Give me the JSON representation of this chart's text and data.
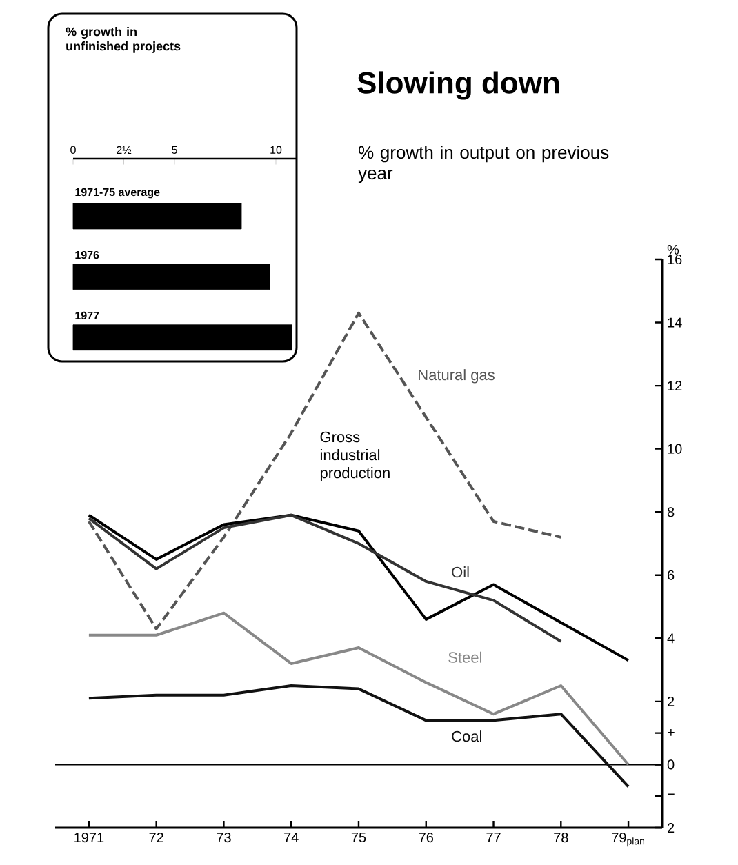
{
  "chart_data": [
    {
      "type": "line",
      "title": "Slowing down",
      "subtitle": "% growth in output on previous year",
      "ylabel": "%",
      "categories": [
        "1971",
        "72",
        "73",
        "74",
        "75",
        "76",
        "77",
        "78",
        "79$_{plan}$"
      ],
      "series": [
        {
          "name": "Natural gas",
          "color": "#555555",
          "line_style": "dashed",
          "values": [
            7.7,
            4.3,
            7.2,
            10.5,
            14.3,
            11,
            7.7,
            7.2,
            null
          ]
        },
        {
          "name": "Gross industrial production",
          "color": "#000000",
          "values": [
            7.9,
            6.5,
            7.6,
            7.9,
            7.4,
            4.6,
            5.7,
            4.5,
            3.3
          ]
        },
        {
          "name": "Oil",
          "color": "#333333",
          "values": [
            7.8,
            6.2,
            7.5,
            7.9,
            7.0,
            5.8,
            5.2,
            3.9,
            null
          ]
        },
        {
          "name": "Steel",
          "color": "#888888",
          "values": [
            4.1,
            4.1,
            4.8,
            3.2,
            3.7,
            2.6,
            1.6,
            2.5,
            0
          ]
        },
        {
          "name": "Coal",
          "color": "#111111",
          "values": [
            2.1,
            2.2,
            2.2,
            2.5,
            2.4,
            1.4,
            1.4,
            1.6,
            -0.7
          ]
        }
      ],
      "ylim": [
        -2,
        16
      ],
      "yticks": [
        {
          "value": -2,
          "label": "2"
        },
        {
          "value": -1,
          "label": "−"
        },
        0,
        {
          "value": 1,
          "label": "+"
        },
        2,
        4,
        6,
        8,
        10,
        12,
        14,
        16
      ],
      "ref_lines": [
        {
          "axis": "y",
          "value": 0
        }
      ],
      "tick_labels": "y"
    },
    {
      "type": "bar",
      "orientation": "horizontal",
      "title": "% growth in unfinished projects",
      "categories": [
        "1971-75 average",
        "1976",
        "1977"
      ],
      "values": [
        8.3,
        9.7,
        10.8
      ],
      "color": "#000000",
      "xlim": [
        0,
        11
      ],
      "xticks": [
        0,
        {
          "value": 2.5,
          "label": "2½"
        },
        5,
        10
      ]
    }
  ]
}
